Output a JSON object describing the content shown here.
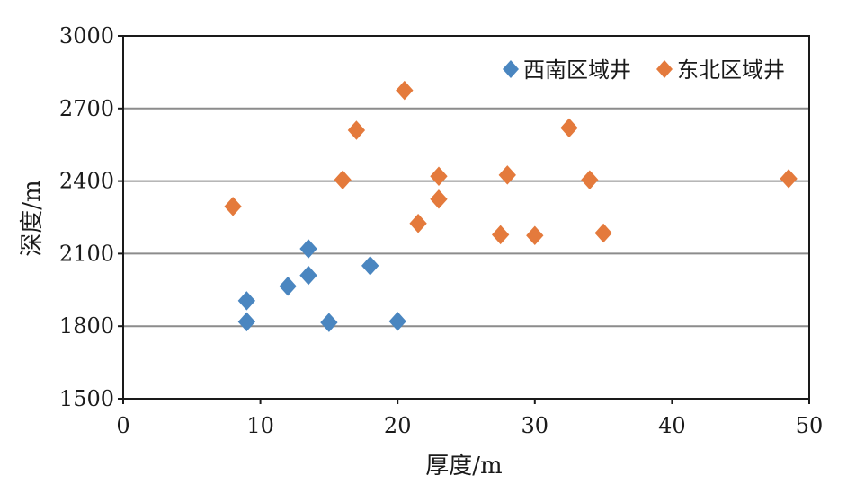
{
  "chart_data": {
    "type": "scatter",
    "xlabel": "厚度/m",
    "ylabel": "深度/m",
    "xlim": [
      0,
      50
    ],
    "ylim": [
      1500,
      3000
    ],
    "xticks": [
      "0",
      "10",
      "20",
      "30",
      "40",
      "50"
    ],
    "yticks": [
      "1500",
      "1800",
      "2100",
      "2400",
      "2700",
      "3000"
    ],
    "grid": "horizontal",
    "legend": "top-right",
    "series": [
      {
        "name": "西南区域井",
        "color": "#4a86c0",
        "marker": "diamond",
        "points": [
          {
            "x": 9,
            "y": 1905
          },
          {
            "x": 9,
            "y": 1818
          },
          {
            "x": 12,
            "y": 1965
          },
          {
            "x": 13.5,
            "y": 2010
          },
          {
            "x": 13.5,
            "y": 2120
          },
          {
            "x": 15,
            "y": 1815
          },
          {
            "x": 18,
            "y": 2050
          },
          {
            "x": 20,
            "y": 1820
          }
        ]
      },
      {
        "name": "东北区域井",
        "color": "#e47a3c",
        "marker": "diamond",
        "points": [
          {
            "x": 8,
            "y": 2295
          },
          {
            "x": 16,
            "y": 2405
          },
          {
            "x": 17,
            "y": 2610
          },
          {
            "x": 20.5,
            "y": 2775
          },
          {
            "x": 21.5,
            "y": 2225
          },
          {
            "x": 23,
            "y": 2420
          },
          {
            "x": 23,
            "y": 2325
          },
          {
            "x": 27.5,
            "y": 2178
          },
          {
            "x": 28,
            "y": 2425
          },
          {
            "x": 30,
            "y": 2175
          },
          {
            "x": 32.5,
            "y": 2620
          },
          {
            "x": 34,
            "y": 2405
          },
          {
            "x": 35,
            "y": 2185
          },
          {
            "x": 48.5,
            "y": 2410
          }
        ]
      }
    ]
  }
}
